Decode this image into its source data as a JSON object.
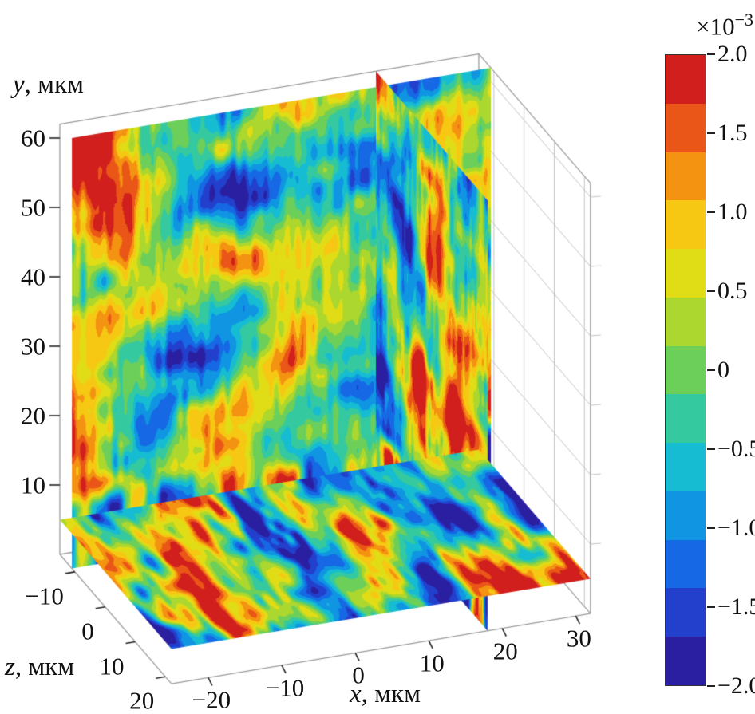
{
  "figure": {
    "background": "#ffffff"
  },
  "chart_data": {
    "type": "heatmap",
    "subtype": "3d-orthogonal-slice-volume-plot",
    "title": "",
    "x_axis": {
      "label_var": "x",
      "label_unit": ", мкм",
      "ticks": [
        -20,
        -10,
        0,
        10,
        20,
        30
      ],
      "tick_labels": [
        "−20",
        "−10",
        "0",
        "10",
        "20",
        "30"
      ],
      "range": [
        -25,
        32
      ]
    },
    "y_axis": {
      "label_var": "y",
      "label_unit": ", мкм",
      "ticks": [
        10,
        20,
        30,
        40,
        50,
        60
      ],
      "tick_labels": [
        "10",
        "20",
        "30",
        "40",
        "50",
        "60"
      ],
      "range": [
        0,
        62
      ]
    },
    "z_axis": {
      "label_var": "z",
      "label_unit": ", мкм",
      "ticks": [
        -10,
        0,
        10,
        20
      ],
      "tick_labels": [
        "−10",
        "0",
        "10",
        "20"
      ],
      "range": [
        -15,
        22
      ]
    },
    "colorbar": {
      "multiplier_base": "×10",
      "multiplier_exp": "−3",
      "tick_values": [
        2,
        1.5,
        1,
        0.5,
        0,
        -0.5,
        -1,
        -1.5,
        -2
      ],
      "tick_labels": [
        "2.0",
        "1.5",
        "1.0",
        "0.5",
        "0",
        "−0.5",
        "−1.0",
        "−1.5",
        "−2.0"
      ],
      "displayed_range": [
        -2,
        2
      ],
      "band_colors_bottom_to_top": [
        "#2a1fa0",
        "#2240cc",
        "#1668e4",
        "#0f95e2",
        "#15bcd2",
        "#35c9a0",
        "#6ccf5a",
        "#abd72e",
        "#e0dd16",
        "#f6c813",
        "#f49211",
        "#ea5617",
        "#d01f1c"
      ]
    },
    "slices": {
      "planes": [
        "x-slice",
        "y-slice",
        "z-slice"
      ],
      "appearance": "noisy banded scalar field rendered through a discrete jet colormap; strong saturated streaks near the bottom horizontal slice"
    },
    "grid": true,
    "legend": "colorbar-right"
  }
}
